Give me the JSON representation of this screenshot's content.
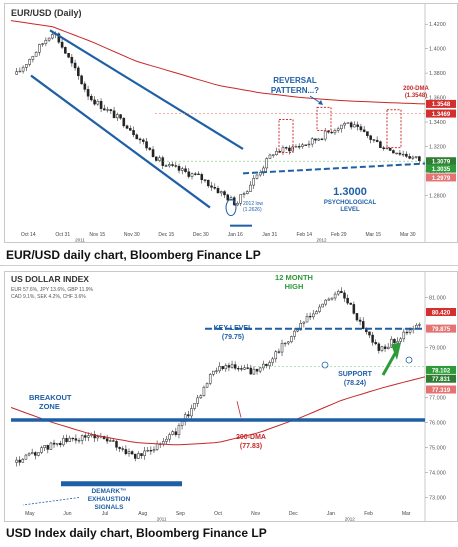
{
  "charts": {
    "eurusd": {
      "title": "EUR/USD (Daily)",
      "caption": "EUR/USD daily chart, Bloomberg Finance LP",
      "y_ticks": [
        "1.4200",
        "1.4000",
        "1.3800",
        "1.3600",
        "1.3400",
        "1.3200",
        "1.3000",
        "1.2800"
      ],
      "x_ticks": [
        "Oct 14",
        "Oct 31",
        "Nov 15",
        "Nov 30",
        "Dec 15",
        "Dec 30",
        "Jan 16",
        "Jan 31",
        "Feb 14",
        "Feb 29",
        "Mar 15",
        "Mar 30"
      ],
      "years": [
        "2011",
        "2012"
      ],
      "price_tags": [
        "1.3548",
        "1.3469",
        "1.3079",
        "1.3035",
        "1.2979"
      ],
      "annotations": {
        "reversal": "REVERSAL\nPATTERN...?",
        "dma": "200-DMA\n(1.3548)",
        "psych_value": "1.3000",
        "psych_label": "PSYCHOLOGICAL\nLEVEL",
        "low": "2012 low\n(1.2626)"
      }
    },
    "usdx": {
      "title": "US DOLLAR INDEX",
      "weights_line1": "EUR 57.6%, JPY 13.6%, GBP 11.9%",
      "weights_line2": "CAD 9.1%, SEK 4.2%, CHF 3.6%",
      "caption": "USD Index daily chart, Bloomberg Finance LP",
      "y_ticks": [
        "81.000",
        "79.000",
        "77.000",
        "76.000",
        "75.000",
        "74.000",
        "73.000"
      ],
      "x_ticks": [
        "May",
        "Jun",
        "Jul",
        "Aug",
        "Sep",
        "Oct",
        "Nov",
        "Dec",
        "Jan",
        "Feb",
        "Mar"
      ],
      "years": [
        "2011",
        "2012"
      ],
      "price_tags": [
        "80.420",
        "79.875",
        "78.102",
        "77.831",
        "77.319"
      ],
      "annotations": {
        "high": "12 MONTH\nHIGH",
        "key_level": "KEY LEVEL\n(79.75)",
        "support": "SUPPORT\n(78.24)",
        "breakout": "BREAKOUT\nZONE",
        "dma": "200-DMA\n(77.83)",
        "demark": "DEMARK™\nEXHAUSTION\nSIGNALS"
      }
    }
  },
  "chart_data": [
    {
      "type": "candlestick",
      "title": "EUR/USD (Daily)",
      "dates": [
        "Oct 14",
        "Oct 31",
        "Nov 15",
        "Nov 30",
        "Dec 15",
        "Dec 30",
        "Jan 16",
        "Jan 31",
        "Feb 14",
        "Feb 29",
        "Mar 15",
        "Mar 30"
      ],
      "close": [
        1.379,
        1.415,
        1.36,
        1.338,
        1.305,
        1.295,
        1.273,
        1.315,
        1.323,
        1.34,
        1.32,
        1.309
      ],
      "series": [
        {
          "name": "200-DMA",
          "value": 1.3548
        },
        {
          "name": "1.3000",
          "value": 1.3
        }
      ],
      "ylim": [
        1.25,
        1.43
      ],
      "annotations": [
        "REVERSAL PATTERN...?",
        "200-DMA (1.3548)",
        "1.3000 PSYCHOLOGICAL LEVEL",
        "2012 low (1.2626)"
      ]
    },
    {
      "type": "candlestick",
      "title": "US DOLLAR INDEX",
      "dates": [
        "May",
        "Jun",
        "Jul",
        "Aug",
        "Sep",
        "Oct",
        "Nov",
        "Dec",
        "Jan",
        "Feb",
        "Mar"
      ],
      "close": [
        74.4,
        75.2,
        75.5,
        74.6,
        75.7,
        78.3,
        78.0,
        79.8,
        81.3,
        78.9,
        79.9
      ],
      "series": [
        {
          "name": "KEY LEVEL",
          "value": 79.75
        },
        {
          "name": "SUPPORT",
          "value": 78.24
        },
        {
          "name": "200-DMA",
          "value": 77.83
        }
      ],
      "ylim": [
        72.5,
        81.7
      ],
      "annotations": [
        "12 MONTH HIGH",
        "KEY LEVEL (79.75)",
        "SUPPORT (78.24)",
        "BREAKOUT ZONE",
        "200-DMA (77.83)",
        "DEMARK™ EXHAUSTION SIGNALS"
      ]
    }
  ]
}
